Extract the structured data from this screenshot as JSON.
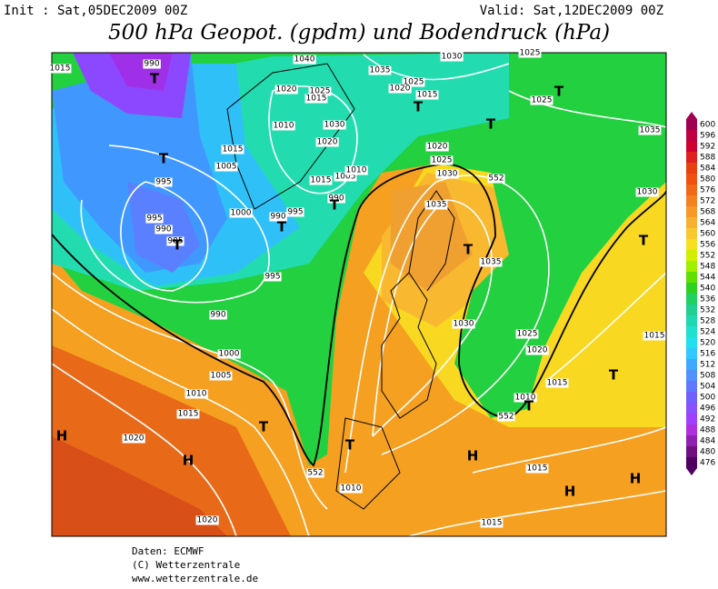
{
  "header": {
    "init": "Init : Sat,05DEC2009 00Z",
    "valid": "Valid: Sat,12DEC2009 00Z",
    "title": "500 hPa Geopot. (gpdm) und Bodendruck (hPa)"
  },
  "colorbar": {
    "values": [
      600,
      596,
      592,
      588,
      584,
      580,
      576,
      572,
      568,
      564,
      560,
      556,
      552,
      548,
      544,
      540,
      536,
      532,
      528,
      524,
      520,
      516,
      512,
      508,
      504,
      500,
      496,
      492,
      488,
      484,
      480,
      476
    ]
  },
  "map": {
    "labels": [
      "1015",
      "990",
      "1040",
      "1035",
      "1030",
      "1025",
      "1025",
      "1035",
      "1030",
      "1020",
      "1025",
      "1015",
      "1010",
      "1030",
      "1020",
      "1015",
      "1005",
      "1005",
      "1010",
      "1015",
      "1000",
      "990",
      "995",
      "990",
      "995",
      "995",
      "990",
      "985",
      "995",
      "990",
      "1000",
      "1005",
      "1010",
      "1015",
      "1020",
      "1020",
      "1025",
      "1020",
      "1015",
      "1020",
      "1025",
      "1030",
      "552",
      "1035",
      "1035",
      "1030",
      "1025",
      "1020",
      "1015",
      "1010",
      "552",
      "1015",
      "1015",
      "1010",
      "552",
      "1015"
    ],
    "centers": [
      "H",
      "H",
      "H",
      "H",
      "H",
      "T",
      "T",
      "T",
      "T",
      "T",
      "T",
      "T",
      "T",
      "T",
      "T",
      "T",
      "T",
      "T",
      "T"
    ]
  },
  "footer": {
    "lines": [
      "Daten: ECMWF",
      "(C) Wetterzentrale",
      "www.wetterzentrale.de"
    ]
  }
}
